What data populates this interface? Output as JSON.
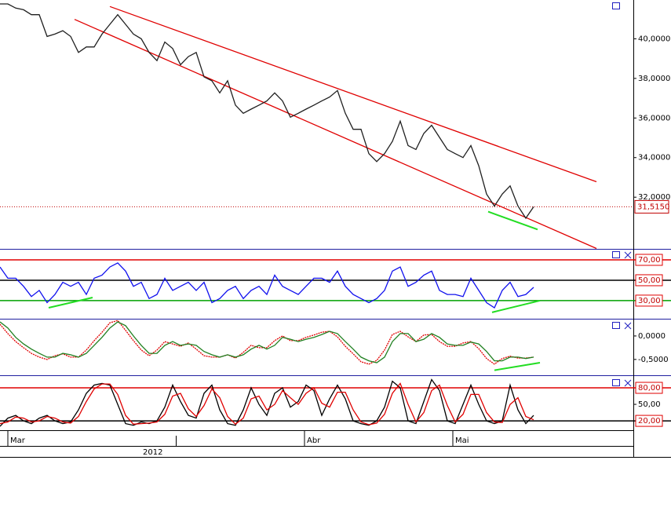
{
  "chart_data": [
    {
      "type": "line",
      "xlim": [
        0,
        80.7
      ],
      "xticks": [
        {
          "value": 1,
          "label": "Mar"
        },
        {
          "value": 38.8,
          "label": "Abr"
        },
        {
          "value": 57.7,
          "label": "Mai"
        }
      ],
      "xlabel": "2012",
      "ylim": [
        29.43,
        41.96
      ],
      "yticks": [
        {
          "value": 32,
          "label": "32,0000"
        },
        {
          "value": 34,
          "label": "34,0000"
        },
        {
          "value": 36,
          "label": "36,0000"
        },
        {
          "value": 38,
          "label": "38,0000"
        },
        {
          "value": 40,
          "label": "40,0000"
        }
      ],
      "series": [
        {
          "color": "#202020",
          "values": [
            41.76,
            41.76,
            41.55,
            41.47,
            41.22,
            41.22,
            40.12,
            40.24,
            40.41,
            40.12,
            39.31,
            39.59,
            39.59,
            40.24,
            40.73,
            41.22,
            40.73,
            40.24,
            40.0,
            39.31,
            38.9,
            39.84,
            39.51,
            38.69,
            39.1,
            39.31,
            38.08,
            37.88,
            37.27,
            37.88,
            36.65,
            36.24,
            36.45,
            36.65,
            36.86,
            37.27,
            36.86,
            36.04,
            36.24,
            36.45,
            36.65,
            36.86,
            37.06,
            37.39,
            36.24,
            35.43,
            35.43,
            34.2,
            33.8,
            34.2,
            34.82,
            35.84,
            34.61,
            34.41,
            35.22,
            35.63,
            35.02,
            34.41,
            34.2,
            34.0,
            34.61,
            33.59,
            32.16,
            31.55,
            32.16,
            32.57,
            31.55,
            30.94,
            31.515
          ]
        }
      ],
      "annotations": [
        {
          "from": [
            14,
            41.63
          ],
          "to": [
            76,
            32.78
          ],
          "color": "#e00000"
        },
        {
          "from": [
            9.5,
            40.98
          ],
          "to": [
            76,
            29.41
          ],
          "color": "#e00000"
        },
        {
          "from": [
            62.2,
            31.27
          ],
          "to": [
            68.5,
            30.37
          ],
          "color": "#22dd22"
        }
      ],
      "current_price": {
        "value": 31.515,
        "label": "31,5150",
        "color": "#c00000"
      }
    },
    {
      "type": "line",
      "ylim": [
        13,
        80
      ],
      "yticks": [
        {
          "value": 70,
          "label": "70,00"
        },
        {
          "value": 50,
          "label": "50,00"
        },
        {
          "value": 30,
          "label": "30,00"
        }
      ],
      "level_colors": [
        "#e00000",
        "#000000",
        "#00a000"
      ],
      "series": [
        {
          "color": "#1010ee",
          "values": [
            63,
            52,
            52,
            44,
            34,
            40,
            28,
            36,
            48,
            44,
            48,
            36,
            52,
            55,
            63,
            67,
            59,
            44,
            48,
            32,
            36,
            52,
            40,
            44,
            48,
            40,
            48,
            28,
            32,
            40,
            44,
            32,
            40,
            44,
            36,
            55,
            44,
            40,
            36,
            44,
            52,
            52,
            48,
            59,
            44,
            36,
            32,
            28,
            32,
            40,
            59,
            63,
            44,
            48,
            55,
            59,
            40,
            36,
            36,
            34,
            52,
            40,
            28,
            23,
            40,
            48,
            34,
            36,
            43
          ]
        }
      ],
      "annotations": [
        {
          "from": [
            6.2,
            23
          ],
          "to": [
            11.8,
            33
          ],
          "color": "#22dd22"
        },
        {
          "from": [
            62.7,
            18.5
          ],
          "to": [
            68.8,
            30
          ],
          "color": "#22dd22"
        }
      ]
    },
    {
      "type": "line",
      "ylim": [
        -0.82,
        0.35
      ],
      "yticks": [
        {
          "value": 0,
          "label": "0,0000"
        },
        {
          "value": -0.5,
          "label": "-0,5000"
        }
      ],
      "series": [
        {
          "color": "#e00000",
          "dotted": true,
          "values": [
            0.25,
            0.05,
            -0.12,
            -0.25,
            -0.37,
            -0.45,
            -0.5,
            -0.42,
            -0.38,
            -0.45,
            -0.45,
            -0.3,
            -0.1,
            0.08,
            0.28,
            0.33,
            0.12,
            -0.1,
            -0.3,
            -0.42,
            -0.3,
            -0.12,
            -0.17,
            -0.22,
            -0.15,
            -0.28,
            -0.42,
            -0.45,
            -0.45,
            -0.4,
            -0.47,
            -0.35,
            -0.2,
            -0.25,
            -0.25,
            -0.1,
            0.0,
            -0.1,
            -0.1,
            -0.03,
            0.02,
            0.08,
            0.1,
            -0.02,
            -0.22,
            -0.38,
            -0.55,
            -0.6,
            -0.52,
            -0.3,
            0.03,
            0.1,
            -0.02,
            -0.12,
            0.02,
            0.03,
            -0.12,
            -0.22,
            -0.22,
            -0.15,
            -0.12,
            -0.27,
            -0.48,
            -0.6,
            -0.48,
            -0.43,
            -0.47,
            -0.47,
            -0.45
          ]
        },
        {
          "color": "#208020",
          "values": [
            0.3,
            0.17,
            -0.03,
            -0.17,
            -0.28,
            -0.37,
            -0.45,
            -0.45,
            -0.37,
            -0.4,
            -0.45,
            -0.37,
            -0.2,
            -0.03,
            0.17,
            0.3,
            0.22,
            0.0,
            -0.2,
            -0.37,
            -0.37,
            -0.2,
            -0.12,
            -0.2,
            -0.17,
            -0.2,
            -0.33,
            -0.4,
            -0.45,
            -0.4,
            -0.45,
            -0.4,
            -0.28,
            -0.2,
            -0.28,
            -0.2,
            -0.03,
            -0.07,
            -0.12,
            -0.07,
            -0.03,
            0.03,
            0.1,
            0.05,
            -0.12,
            -0.28,
            -0.45,
            -0.53,
            -0.57,
            -0.45,
            -0.12,
            0.05,
            0.05,
            -0.12,
            -0.07,
            0.05,
            -0.03,
            -0.17,
            -0.2,
            -0.2,
            -0.13,
            -0.17,
            -0.33,
            -0.53,
            -0.53,
            -0.45,
            -0.45,
            -0.48,
            -0.45
          ]
        }
      ],
      "annotations": [
        {
          "from": [
            63,
            -0.73
          ],
          "to": [
            68.8,
            -0.57
          ],
          "color": "#22dd22"
        }
      ]
    },
    {
      "type": "line",
      "ylim": [
        3,
        100
      ],
      "yticks": [
        {
          "value": 80,
          "label": "80,00"
        },
        {
          "value": 50,
          "label": "50,00"
        },
        {
          "value": 20,
          "label": "20,00"
        }
      ],
      "level_colors": [
        "#e00000",
        null,
        "#000000"
      ],
      "series": [
        {
          "color": "#000000",
          "values": [
            10,
            25,
            30,
            20,
            15,
            25,
            30,
            20,
            15,
            18,
            40,
            70,
            85,
            88,
            85,
            50,
            15,
            12,
            18,
            15,
            20,
            45,
            85,
            55,
            30,
            25,
            70,
            85,
            40,
            15,
            12,
            40,
            80,
            50,
            30,
            70,
            80,
            45,
            55,
            85,
            75,
            30,
            60,
            85,
            60,
            20,
            15,
            12,
            20,
            45,
            92,
            80,
            20,
            15,
            55,
            95,
            75,
            20,
            15,
            50,
            85,
            50,
            20,
            15,
            20,
            85,
            40,
            15,
            30
          ]
        },
        {
          "color": "#e00000",
          "values": [
            15,
            18,
            27,
            25,
            18,
            20,
            28,
            25,
            18,
            16,
            28,
            55,
            78,
            87,
            87,
            68,
            30,
            14,
            15,
            16,
            18,
            32,
            65,
            70,
            42,
            28,
            48,
            78,
            62,
            28,
            14,
            25,
            60,
            65,
            40,
            50,
            75,
            62,
            50,
            70,
            80,
            52,
            45,
            72,
            72,
            40,
            18,
            13,
            16,
            32,
            70,
            88,
            50,
            18,
            35,
            75,
            85,
            48,
            18,
            32,
            68,
            68,
            35,
            18,
            17,
            50,
            62,
            28,
            22
          ]
        }
      ]
    }
  ]
}
